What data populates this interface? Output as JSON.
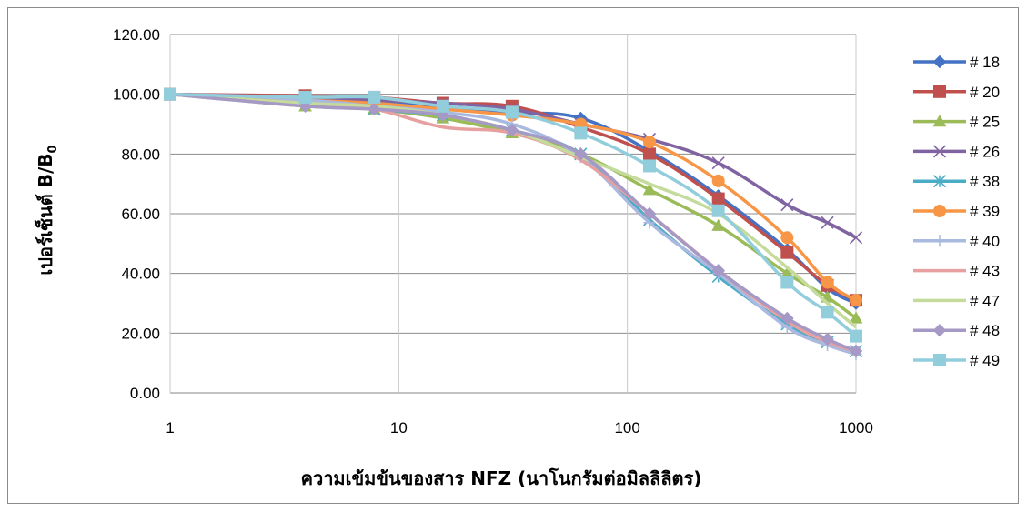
{
  "chart_data": {
    "type": "line",
    "xlabel": "ความเข้มข้นของสาร NFZ (นาโนกรัมต่อมิลลิลิตร)",
    "ylabel": "เปอร์เซ็นต์ B/B",
    "ylabel_sub": "0",
    "x_scale": "log",
    "xlim": [
      1,
      1000
    ],
    "ylim": [
      0,
      120
    ],
    "x_ticks": [
      "1",
      "10",
      "100",
      "1000"
    ],
    "y_ticks": [
      "0.00",
      "20.00",
      "40.00",
      "60.00",
      "80.00",
      "100.00",
      "120.00"
    ],
    "grid": "horizontal",
    "legend_position": "right",
    "x": [
      1,
      3.9,
      7.8,
      15.6,
      31.3,
      62.5,
      125,
      250,
      500,
      750,
      1000
    ],
    "series": [
      {
        "name": "# 18",
        "color": "#4472C4",
        "marker": "diamond",
        "values": [
          100,
          99,
          98,
          96,
          94,
          92,
          81,
          66,
          48,
          35,
          30
        ]
      },
      {
        "name": "# 20",
        "color": "#C0504D",
        "marker": "square",
        "values": [
          100,
          99.5,
          99,
          97,
          96,
          89,
          80,
          65,
          47,
          36,
          31
        ]
      },
      {
        "name": "# 25",
        "color": "#9BBB59",
        "marker": "triangle",
        "values": [
          100,
          96,
          95,
          92,
          87,
          80,
          68,
          56,
          40,
          32,
          25
        ]
      },
      {
        "name": "# 26",
        "color": "#8064A2",
        "marker": "x",
        "values": [
          100,
          99,
          98,
          97,
          95,
          90,
          85,
          77,
          63,
          57,
          52
        ]
      },
      {
        "name": "# 38",
        "color": "#4BACC6",
        "marker": "star",
        "values": [
          100,
          98,
          95,
          93,
          88,
          80,
          58,
          39,
          23,
          17,
          14
        ]
      },
      {
        "name": "# 39",
        "color": "#F79646",
        "marker": "circle",
        "values": [
          100,
          98,
          97,
          95,
          93,
          90,
          84,
          71,
          52,
          37,
          31
        ]
      },
      {
        "name": "# 40",
        "color": "#A9B9E0",
        "marker": "plus",
        "values": [
          100,
          98,
          96,
          94,
          90,
          79,
          57,
          40,
          22,
          16,
          13
        ]
      },
      {
        "name": "# 43",
        "color": "#E6A0A0",
        "marker": "none",
        "values": [
          100,
          97,
          95,
          89,
          87,
          78,
          60,
          41,
          24,
          17,
          14
        ]
      },
      {
        "name": "# 47",
        "color": "#C4DB9B",
        "marker": "none",
        "values": [
          100,
          97,
          96,
          93,
          88,
          79,
          70,
          60,
          42,
          30,
          22
        ]
      },
      {
        "name": "# 48",
        "color": "#A699C5",
        "marker": "diamond",
        "values": [
          100,
          96,
          95,
          93,
          88,
          80,
          60,
          41,
          25,
          18,
          14
        ]
      },
      {
        "name": "# 49",
        "color": "#92CDDC",
        "marker": "square",
        "values": [
          100,
          99,
          99,
          96,
          94,
          87,
          76,
          61,
          37,
          27,
          19
        ]
      }
    ]
  }
}
